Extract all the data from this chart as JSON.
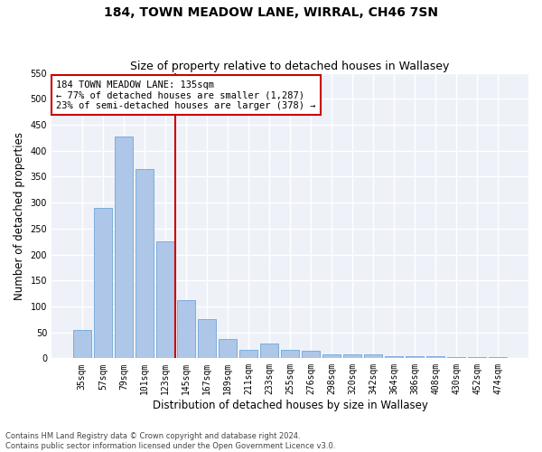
{
  "title": "184, TOWN MEADOW LANE, WIRRAL, CH46 7SN",
  "subtitle": "Size of property relative to detached houses in Wallasey",
  "xlabel": "Distribution of detached houses by size in Wallasey",
  "ylabel": "Number of detached properties",
  "categories": [
    "35sqm",
    "57sqm",
    "79sqm",
    "101sqm",
    "123sqm",
    "145sqm",
    "167sqm",
    "189sqm",
    "211sqm",
    "233sqm",
    "255sqm",
    "276sqm",
    "298sqm",
    "320sqm",
    "342sqm",
    "364sqm",
    "386sqm",
    "408sqm",
    "430sqm",
    "452sqm",
    "474sqm"
  ],
  "values": [
    55,
    290,
    428,
    365,
    225,
    112,
    75,
    38,
    17,
    28,
    17,
    15,
    8,
    8,
    8,
    4,
    4,
    4,
    2,
    2,
    2
  ],
  "bar_color": "#aec6e8",
  "bar_edge_color": "#5b9bd5",
  "vline_color": "#cc0000",
  "annotation_text": "184 TOWN MEADOW LANE: 135sqm\n← 77% of detached houses are smaller (1,287)\n23% of semi-detached houses are larger (378) →",
  "annotation_box_color": "#ffffff",
  "annotation_box_edge": "#cc0000",
  "ylim": [
    0,
    550
  ],
  "yticks": [
    0,
    50,
    100,
    150,
    200,
    250,
    300,
    350,
    400,
    450,
    500,
    550
  ],
  "background_color": "#eef2f8",
  "grid_color": "#ffffff",
  "footer_text": "Contains HM Land Registry data © Crown copyright and database right 2024.\nContains public sector information licensed under the Open Government Licence v3.0.",
  "title_fontsize": 10,
  "subtitle_fontsize": 9,
  "axis_label_fontsize": 8.5,
  "tick_fontsize": 7,
  "annotation_fontsize": 7.5,
  "footer_fontsize": 6
}
